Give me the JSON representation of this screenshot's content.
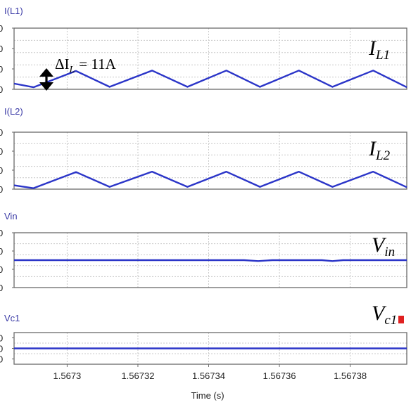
{
  "colors": {
    "trace": "#2b35c8",
    "frame": "#6a6a6a",
    "grid": "#c8c8c8",
    "title": "#3a3aa6",
    "marker": "#e02020"
  },
  "annotation": {
    "icon": "double-arrow-vertical-icon",
    "prefix": "ΔI",
    "subscript": "L",
    "value": "= 11A"
  },
  "chart_data": [
    {
      "type": "line",
      "title": "I(L1)",
      "label_main": "I",
      "label_sub": "L1",
      "xlim": [
        1.567285,
        1.567396
      ],
      "ylim": [
        0,
        3
      ],
      "series": [
        {
          "x": [
            1.567285,
            1.5672905,
            1.5673025,
            1.567312,
            1.567324,
            1.567334,
            1.567345,
            1.5673545,
            1.5673655,
            1.567375,
            1.5673865,
            1.567396
          ],
          "y": [
            0.28,
            0.1,
            0.9,
            0.12,
            0.92,
            0.12,
            0.92,
            0.12,
            0.92,
            0.12,
            0.92,
            0.1
          ]
        }
      ]
    },
    {
      "type": "line",
      "title": "I(L2)",
      "label_main": "I",
      "label_sub": "L2",
      "xlim": [
        1.567285,
        1.567396
      ],
      "ylim": [
        0,
        3
      ],
      "series": [
        {
          "x": [
            1.567285,
            1.5672905,
            1.5673025,
            1.567312,
            1.567324,
            1.567334,
            1.567345,
            1.5673545,
            1.5673655,
            1.567375,
            1.5673865,
            1.567396
          ],
          "y": [
            0.2,
            0.05,
            0.9,
            0.12,
            0.92,
            0.12,
            0.92,
            0.12,
            0.92,
            0.12,
            0.92,
            0.1
          ]
        }
      ]
    },
    {
      "type": "line",
      "title": "Vin",
      "label_main": "V",
      "label_sub": "in",
      "xlim": [
        1.567285,
        1.567396
      ],
      "ylim": [
        0,
        3
      ],
      "series": [
        {
          "x": [
            1.567285,
            1.56735,
            1.567354,
            1.567358,
            1.567372,
            1.567375,
            1.567378,
            1.567396
          ],
          "y": [
            1.5,
            1.5,
            1.45,
            1.5,
            1.5,
            1.45,
            1.5,
            1.5
          ]
        }
      ]
    },
    {
      "type": "line",
      "title": "Vc1",
      "label_main": "V",
      "label_sub": "c1",
      "xlim": [
        1.567285,
        1.567396
      ],
      "ylim": [
        0,
        2
      ],
      "series": [
        {
          "x": [
            1.567285,
            1.567396
          ],
          "y": [
            1.0,
            1.0
          ]
        }
      ]
    }
  ],
  "x_axis": {
    "ticks": [
      1.5673,
      1.56732,
      1.56734,
      1.56736,
      1.56738
    ],
    "tick_labels": [
      "1.5673",
      "1.56732",
      "1.56734",
      "1.56736",
      "1.56738"
    ],
    "label": "Time (s)"
  },
  "y_axis_tick_glyph": "0"
}
